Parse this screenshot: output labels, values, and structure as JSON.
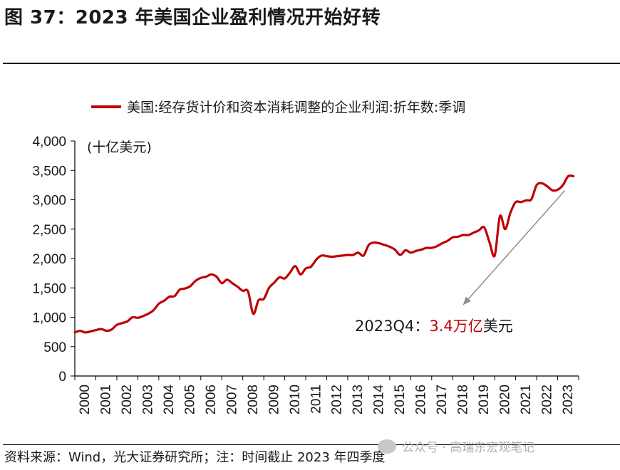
{
  "page": {
    "title": "图 37：2023 年美国企业盈利情况开始好转",
    "legend_label": "美国:经存货计价和资本消耗调整的企业利润:折年数:季调",
    "source": "资料来源：Wind，光大证券研究所；注：时间截止 2023 年四季度",
    "watermark": "公众号 · 高瑞东宏观笔记",
    "colors": {
      "series": "#c00000",
      "arrow": "#8c8c8c",
      "axis": "#000000"
    }
  },
  "chart_data": {
    "type": "line",
    "title": "",
    "unit_label": "(十亿美元)",
    "xlabel": "",
    "ylabel": "",
    "ylim": [
      0,
      4000
    ],
    "y_ticks": [
      0,
      500,
      1000,
      1500,
      2000,
      2500,
      3000,
      3500,
      4000
    ],
    "y_tick_labels": [
      "0",
      "500",
      "1,000",
      "1,500",
      "2,000",
      "2,500",
      "3,000",
      "3,500",
      "4,000"
    ],
    "xlim": [
      2000.0,
      2024.0
    ],
    "x_tick_labels": [
      "2000",
      "2001",
      "2002",
      "2003",
      "2004",
      "2005",
      "2006",
      "2007",
      "2008",
      "2009",
      "2010",
      "2011",
      "2012",
      "2013",
      "2014",
      "2015",
      "2016",
      "2017",
      "2018",
      "2019",
      "2020",
      "2021",
      "2022",
      "2023"
    ],
    "grid": false,
    "legend_position": "top",
    "series": [
      {
        "name": "美国:经存货计价和资本消耗调整的企业利润:折年数:季调",
        "x": [
          2000.0,
          2000.25,
          2000.5,
          2000.75,
          2001.0,
          2001.25,
          2001.5,
          2001.75,
          2002.0,
          2002.25,
          2002.5,
          2002.75,
          2003.0,
          2003.25,
          2003.5,
          2003.75,
          2004.0,
          2004.25,
          2004.5,
          2004.75,
          2005.0,
          2005.25,
          2005.5,
          2005.75,
          2006.0,
          2006.25,
          2006.5,
          2006.75,
          2007.0,
          2007.25,
          2007.5,
          2007.75,
          2008.0,
          2008.25,
          2008.5,
          2008.75,
          2009.0,
          2009.25,
          2009.5,
          2009.75,
          2010.0,
          2010.25,
          2010.5,
          2010.75,
          2011.0,
          2011.25,
          2011.5,
          2011.75,
          2012.0,
          2012.25,
          2012.5,
          2012.75,
          2013.0,
          2013.25,
          2013.5,
          2013.75,
          2014.0,
          2014.25,
          2014.5,
          2014.75,
          2015.0,
          2015.25,
          2015.5,
          2015.75,
          2016.0,
          2016.25,
          2016.5,
          2016.75,
          2017.0,
          2017.25,
          2017.5,
          2017.75,
          2018.0,
          2018.25,
          2018.5,
          2018.75,
          2019.0,
          2019.25,
          2019.5,
          2019.75,
          2020.0,
          2020.25,
          2020.5,
          2020.75,
          2021.0,
          2021.25,
          2021.5,
          2021.75,
          2022.0,
          2022.25,
          2022.5,
          2022.75,
          2023.0,
          2023.25,
          2023.5,
          2023.75
        ],
        "values": [
          740,
          770,
          740,
          760,
          780,
          800,
          770,
          790,
          870,
          900,
          930,
          1000,
          990,
          1020,
          1060,
          1120,
          1230,
          1280,
          1350,
          1360,
          1470,
          1490,
          1530,
          1620,
          1670,
          1690,
          1730,
          1690,
          1580,
          1640,
          1580,
          1520,
          1450,
          1440,
          1060,
          1290,
          1310,
          1500,
          1590,
          1680,
          1660,
          1760,
          1870,
          1730,
          1830,
          1860,
          1980,
          2050,
          2040,
          2030,
          2040,
          2050,
          2060,
          2060,
          2100,
          2050,
          2230,
          2270,
          2260,
          2230,
          2200,
          2150,
          2060,
          2140,
          2100,
          2130,
          2150,
          2180,
          2180,
          2210,
          2260,
          2300,
          2360,
          2370,
          2400,
          2400,
          2440,
          2480,
          2530,
          2280,
          2050,
          2720,
          2500,
          2780,
          2960,
          2960,
          2990,
          3010,
          3250,
          3280,
          3230,
          3160,
          3170,
          3250,
          3400,
          3400
        ]
      }
    ],
    "annotations": [
      {
        "label": "2023Q4：",
        "highlight": "3.4万亿",
        "suffix": "美元",
        "points_to": {
          "x": 2023.75,
          "y": 3400
        }
      }
    ]
  }
}
